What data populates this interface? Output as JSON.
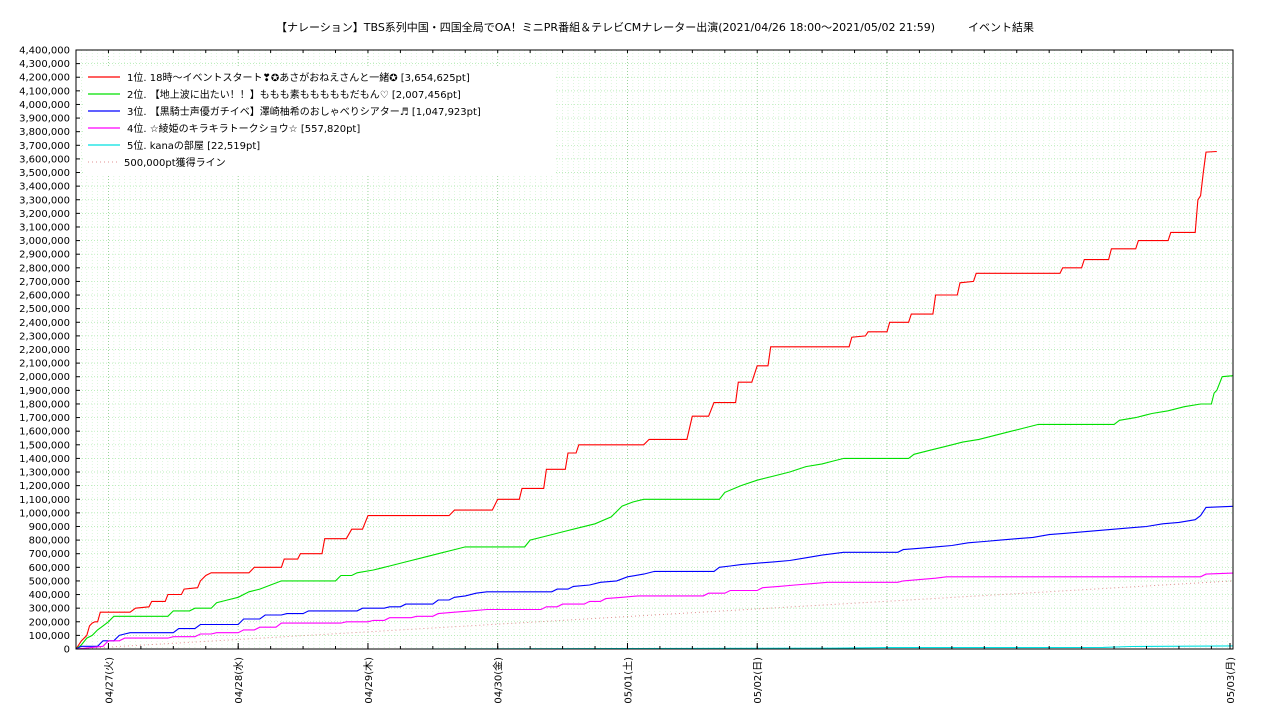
{
  "chart_data": {
    "type": "line",
    "title": "【ナレーション】TBS系列中国・四国全局でOA！ミニPR番組＆テレビCMナレーター出演(2021/04/26 18:00〜2021/05/02 21:59)　　　イベント結果",
    "xlabel": "",
    "ylabel": "",
    "x_ticks": [
      "04/27(火)",
      "04/28(水)",
      "04/29(木)",
      "04/30(金)",
      "05/01(土)",
      "05/02(日)",
      "05/03(月)"
    ],
    "x_range": [
      "2021/04/26 18:00",
      "2021/05/03 00:30"
    ],
    "ylim": [
      0,
      4400000
    ],
    "y_tick_step": 100000,
    "grid": true,
    "legend_position": "top-left",
    "series": [
      {
        "name": "1位. 18時〜イベントスタート❣✪あさがおねえさんと一緒✪ [3,654,625pt]",
        "color": "#ff0000",
        "points": [
          [
            0,
            0
          ],
          [
            1,
            60000
          ],
          [
            2,
            100000
          ],
          [
            2.5,
            170000
          ],
          [
            3,
            190000
          ],
          [
            3.5,
            200000
          ],
          [
            4,
            200000
          ],
          [
            4.5,
            270000
          ],
          [
            10,
            270000
          ],
          [
            11,
            300000
          ],
          [
            13.5,
            310000
          ],
          [
            14,
            350000
          ],
          [
            16.5,
            350000
          ],
          [
            17,
            400000
          ],
          [
            19.5,
            400000
          ],
          [
            20,
            440000
          ],
          [
            22.5,
            450000
          ],
          [
            23,
            500000
          ],
          [
            24,
            540000
          ],
          [
            25,
            560000
          ],
          [
            32,
            560000
          ],
          [
            33,
            600000
          ],
          [
            38,
            600000
          ],
          [
            38.5,
            660000
          ],
          [
            41,
            660000
          ],
          [
            41.5,
            700000
          ],
          [
            45.5,
            700000
          ],
          [
            46,
            810000
          ],
          [
            50,
            810000
          ],
          [
            51,
            880000
          ],
          [
            53,
            880000
          ],
          [
            54,
            980000
          ],
          [
            69,
            980000
          ],
          [
            70,
            1020000
          ],
          [
            77,
            1020000
          ],
          [
            78,
            1100000
          ],
          [
            82,
            1100000
          ],
          [
            82.5,
            1180000
          ],
          [
            86.5,
            1180000
          ],
          [
            87,
            1320000
          ],
          [
            90.5,
            1320000
          ],
          [
            91,
            1440000
          ],
          [
            92.5,
            1440000
          ],
          [
            93,
            1500000
          ],
          [
            105,
            1500000
          ],
          [
            106,
            1540000
          ],
          [
            113,
            1540000
          ],
          [
            114,
            1710000
          ],
          [
            117,
            1710000
          ],
          [
            118,
            1810000
          ],
          [
            122,
            1810000
          ],
          [
            122.5,
            1960000
          ],
          [
            125,
            1960000
          ],
          [
            126,
            2080000
          ],
          [
            128,
            2080000
          ],
          [
            128.5,
            2220000
          ],
          [
            143,
            2220000
          ],
          [
            143.5,
            2290000
          ],
          [
            146,
            2300000
          ],
          [
            146.5,
            2330000
          ],
          [
            150,
            2330000
          ],
          [
            150.5,
            2400000
          ],
          [
            154,
            2400000
          ],
          [
            154.5,
            2460000
          ],
          [
            158.5,
            2460000
          ],
          [
            159,
            2600000
          ],
          [
            163,
            2600000
          ],
          [
            163.5,
            2690000
          ],
          [
            166,
            2700000
          ],
          [
            166.5,
            2760000
          ],
          [
            182,
            2760000
          ],
          [
            182.5,
            2800000
          ],
          [
            186,
            2800000
          ],
          [
            186.5,
            2860000
          ],
          [
            191,
            2860000
          ],
          [
            191.5,
            2940000
          ],
          [
            196,
            2940000
          ],
          [
            196.5,
            3000000
          ],
          [
            202,
            3000000
          ],
          [
            202.5,
            3060000
          ],
          [
            207,
            3060000
          ],
          [
            207.5,
            3300000
          ],
          [
            208,
            3330000
          ],
          [
            208.5,
            3500000
          ],
          [
            209,
            3650000
          ],
          [
            211,
            3654625
          ]
        ]
      },
      {
        "name": "2位. 【地上波に出たい！！】ももも素もももももだもん♡ [2,007,456pt]",
        "color": "#00e000",
        "points": [
          [
            0,
            0
          ],
          [
            1,
            30000
          ],
          [
            2,
            80000
          ],
          [
            3,
            100000
          ],
          [
            4,
            140000
          ],
          [
            5,
            170000
          ],
          [
            6,
            200000
          ],
          [
            7,
            240000
          ],
          [
            17,
            240000
          ],
          [
            18,
            280000
          ],
          [
            21,
            280000
          ],
          [
            22,
            300000
          ],
          [
            25,
            300000
          ],
          [
            26,
            340000
          ],
          [
            28,
            360000
          ],
          [
            30,
            380000
          ],
          [
            32,
            420000
          ],
          [
            34,
            440000
          ],
          [
            36,
            470000
          ],
          [
            38,
            500000
          ],
          [
            48,
            500000
          ],
          [
            49,
            540000
          ],
          [
            51,
            540000
          ],
          [
            52,
            560000
          ],
          [
            55,
            580000
          ],
          [
            58,
            610000
          ],
          [
            61,
            640000
          ],
          [
            64,
            670000
          ],
          [
            67,
            700000
          ],
          [
            70,
            730000
          ],
          [
            72,
            750000
          ],
          [
            83,
            750000
          ],
          [
            84,
            800000
          ],
          [
            87,
            830000
          ],
          [
            90,
            860000
          ],
          [
            93,
            890000
          ],
          [
            96,
            920000
          ],
          [
            99,
            970000
          ],
          [
            101,
            1050000
          ],
          [
            103,
            1080000
          ],
          [
            105,
            1100000
          ],
          [
            119,
            1100000
          ],
          [
            120,
            1150000
          ],
          [
            123,
            1200000
          ],
          [
            126,
            1240000
          ],
          [
            129,
            1270000
          ],
          [
            132,
            1300000
          ],
          [
            135,
            1340000
          ],
          [
            138,
            1360000
          ],
          [
            140,
            1380000
          ],
          [
            142,
            1400000
          ],
          [
            154,
            1400000
          ],
          [
            155,
            1430000
          ],
          [
            158,
            1460000
          ],
          [
            161,
            1490000
          ],
          [
            164,
            1520000
          ],
          [
            167,
            1540000
          ],
          [
            170,
            1570000
          ],
          [
            173,
            1600000
          ],
          [
            176,
            1630000
          ],
          [
            178,
            1650000
          ],
          [
            192,
            1650000
          ],
          [
            193,
            1680000
          ],
          [
            196,
            1700000
          ],
          [
            199,
            1730000
          ],
          [
            202,
            1750000
          ],
          [
            205,
            1780000
          ],
          [
            208,
            1800000
          ],
          [
            210,
            1800000
          ],
          [
            210.5,
            1880000
          ],
          [
            211,
            1900000
          ],
          [
            212,
            2000000
          ],
          [
            214,
            2007456
          ]
        ]
      },
      {
        "name": "3位. 【黒騎士声優ガチイベ】澤崎柚希のおしゃべりシアター♬ [1,047,923pt]",
        "color": "#0000ff",
        "points": [
          [
            0,
            0
          ],
          [
            1,
            20000
          ],
          [
            4,
            20000
          ],
          [
            5,
            60000
          ],
          [
            7,
            60000
          ],
          [
            8,
            100000
          ],
          [
            9,
            110000
          ],
          [
            10,
            120000
          ],
          [
            18,
            120000
          ],
          [
            19,
            150000
          ],
          [
            22,
            150000
          ],
          [
            23,
            180000
          ],
          [
            30,
            180000
          ],
          [
            31,
            220000
          ],
          [
            34,
            220000
          ],
          [
            35,
            250000
          ],
          [
            38,
            250000
          ],
          [
            39,
            260000
          ],
          [
            42,
            260000
          ],
          [
            43,
            280000
          ],
          [
            52,
            280000
          ],
          [
            53,
            300000
          ],
          [
            57,
            300000
          ],
          [
            58,
            310000
          ],
          [
            60,
            310000
          ],
          [
            61,
            330000
          ],
          [
            66,
            330000
          ],
          [
            67,
            360000
          ],
          [
            69,
            360000
          ],
          [
            70,
            380000
          ],
          [
            72,
            390000
          ],
          [
            74,
            410000
          ],
          [
            76,
            420000
          ],
          [
            88,
            420000
          ],
          [
            89,
            440000
          ],
          [
            91,
            440000
          ],
          [
            92,
            460000
          ],
          [
            95,
            470000
          ],
          [
            97,
            490000
          ],
          [
            100,
            500000
          ],
          [
            102,
            530000
          ],
          [
            105,
            550000
          ],
          [
            107,
            570000
          ],
          [
            118,
            570000
          ],
          [
            119,
            600000
          ],
          [
            121,
            610000
          ],
          [
            123,
            620000
          ],
          [
            126,
            630000
          ],
          [
            129,
            640000
          ],
          [
            132,
            650000
          ],
          [
            135,
            670000
          ],
          [
            138,
            690000
          ],
          [
            140,
            700000
          ],
          [
            142,
            710000
          ],
          [
            152,
            710000
          ],
          [
            153,
            730000
          ],
          [
            156,
            740000
          ],
          [
            159,
            750000
          ],
          [
            162,
            760000
          ],
          [
            165,
            780000
          ],
          [
            168,
            790000
          ],
          [
            171,
            800000
          ],
          [
            174,
            810000
          ],
          [
            177,
            820000
          ],
          [
            180,
            840000
          ],
          [
            183,
            850000
          ],
          [
            186,
            860000
          ],
          [
            189,
            870000
          ],
          [
            192,
            880000
          ],
          [
            195,
            890000
          ],
          [
            198,
            900000
          ],
          [
            201,
            920000
          ],
          [
            204,
            930000
          ],
          [
            207,
            950000
          ],
          [
            208,
            980000
          ],
          [
            209,
            1040000
          ],
          [
            214,
            1047923
          ]
        ]
      },
      {
        "name": "4位. ☆綾姫のキラキラトークショウ☆ [557,820pt]",
        "color": "#ff00ff",
        "points": [
          [
            0,
            0
          ],
          [
            5,
            20000
          ],
          [
            6,
            60000
          ],
          [
            8,
            60000
          ],
          [
            9,
            80000
          ],
          [
            17,
            80000
          ],
          [
            18,
            90000
          ],
          [
            22,
            90000
          ],
          [
            23,
            110000
          ],
          [
            25,
            110000
          ],
          [
            26,
            120000
          ],
          [
            30,
            120000
          ],
          [
            31,
            140000
          ],
          [
            33,
            140000
          ],
          [
            34,
            160000
          ],
          [
            37,
            160000
          ],
          [
            38,
            190000
          ],
          [
            49,
            190000
          ],
          [
            50,
            200000
          ],
          [
            54,
            200000
          ],
          [
            55,
            210000
          ],
          [
            57,
            210000
          ],
          [
            58,
            230000
          ],
          [
            62,
            230000
          ],
          [
            63,
            240000
          ],
          [
            66,
            240000
          ],
          [
            67,
            260000
          ],
          [
            70,
            270000
          ],
          [
            73,
            280000
          ],
          [
            76,
            290000
          ],
          [
            86,
            290000
          ],
          [
            87,
            310000
          ],
          [
            89,
            310000
          ],
          [
            90,
            330000
          ],
          [
            94,
            330000
          ],
          [
            95,
            350000
          ],
          [
            97,
            350000
          ],
          [
            98,
            370000
          ],
          [
            101,
            380000
          ],
          [
            104,
            390000
          ],
          [
            116,
            390000
          ],
          [
            117,
            410000
          ],
          [
            120,
            410000
          ],
          [
            121,
            430000
          ],
          [
            126,
            430000
          ],
          [
            127,
            450000
          ],
          [
            130,
            460000
          ],
          [
            133,
            470000
          ],
          [
            136,
            480000
          ],
          [
            139,
            490000
          ],
          [
            152,
            490000
          ],
          [
            153,
            500000
          ],
          [
            156,
            510000
          ],
          [
            159,
            520000
          ],
          [
            161,
            530000
          ],
          [
            208,
            530000
          ],
          [
            209,
            550000
          ],
          [
            214,
            557820
          ]
        ]
      },
      {
        "name": "5位. kanaの部屋 [22,519pt]",
        "color": "#00e0e0",
        "points": [
          [
            0,
            0
          ],
          [
            60,
            0
          ],
          [
            100,
            3000
          ],
          [
            140,
            6000
          ],
          [
            150,
            10000
          ],
          [
            175,
            10000
          ],
          [
            190,
            12000
          ],
          [
            195,
            18000
          ],
          [
            214,
            22519
          ]
        ]
      },
      {
        "name": "500,000pt獲得ライン",
        "color": "#e09090",
        "dotted": true,
        "points": [
          [
            0,
            0
          ],
          [
            214,
            500000
          ]
        ]
      }
    ]
  }
}
